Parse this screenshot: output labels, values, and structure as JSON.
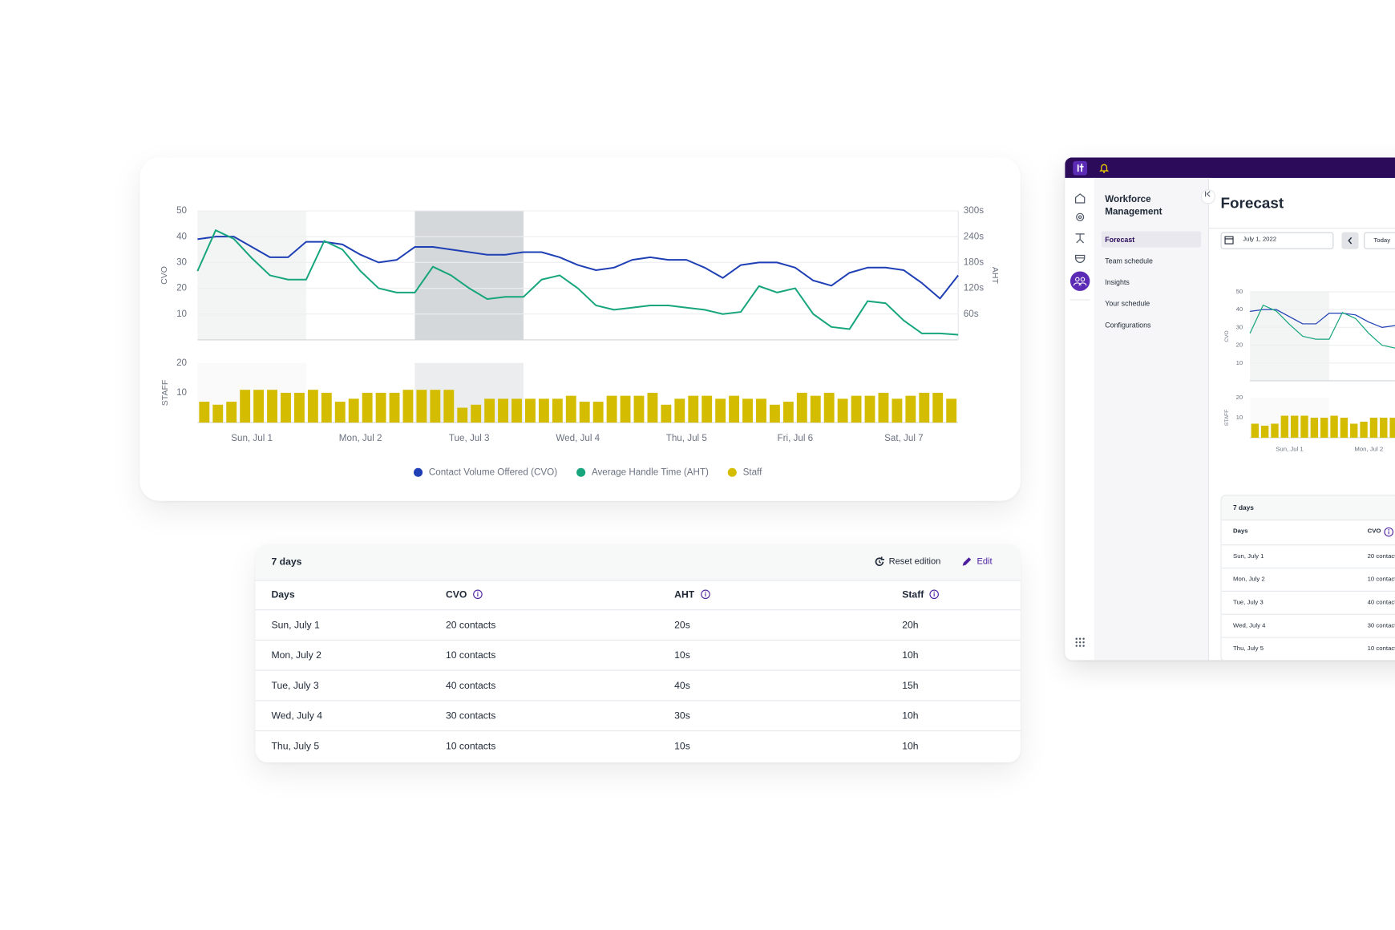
{
  "chart_data": [
    {
      "type": "line",
      "xlim": [
        0,
        168
      ],
      "xticks": [
        {
          "value": 12,
          "label": "Sun, Jul 1"
        },
        {
          "value": 36,
          "label": "Mon, Jul 2"
        },
        {
          "value": 60,
          "label": "Tue, Jul 3"
        },
        {
          "value": 84,
          "label": "Wed, Jul 4"
        },
        {
          "value": 108,
          "label": "Thu, Jul 5"
        },
        {
          "value": 132,
          "label": "Fri, Jul 6"
        },
        {
          "value": 156,
          "label": "Sat, Jul 7"
        }
      ],
      "ylabel": "CVO",
      "y2label": "AHT",
      "ylim": [
        0,
        50
      ],
      "yticks": [
        10,
        20,
        30,
        40,
        50
      ],
      "y2lim": [
        0,
        300
      ],
      "y2ticks": [
        {
          "value": 60,
          "label": "60s"
        },
        {
          "value": 120,
          "label": "120s"
        },
        {
          "value": 180,
          "label": "180s"
        },
        {
          "value": 240,
          "label": "240s"
        },
        {
          "value": 300,
          "label": "300s"
        }
      ],
      "grid": true,
      "bands": [
        {
          "x": [
            0,
            24
          ],
          "color": "#f3f5f4"
        },
        {
          "x": [
            48,
            72
          ],
          "color": "#d5d8db"
        }
      ],
      "x": [
        0,
        4,
        8,
        12,
        16,
        20,
        24,
        28,
        32,
        36,
        40,
        44,
        48,
        52,
        56,
        60,
        64,
        68,
        72,
        76,
        80,
        84,
        88,
        92,
        96,
        100,
        104,
        108,
        112,
        116,
        120,
        124,
        128,
        132,
        136,
        140,
        144,
        148,
        152,
        156,
        160,
        164,
        168
      ],
      "series": [
        {
          "name": "Contact Volume Offered (CVO)",
          "color": "#1f3fb5",
          "values": [
            39,
            40,
            40,
            36,
            32,
            32,
            38,
            38,
            37,
            33,
            30,
            31,
            36,
            36,
            35,
            34,
            33,
            33,
            34,
            34,
            32,
            29,
            27,
            28,
            31,
            32,
            31,
            31,
            28,
            24,
            29,
            30,
            30,
            28,
            23,
            21,
            26,
            28,
            28,
            27,
            22,
            16,
            25
          ]
        },
        {
          "name": "Average Handle Time (AHT)",
          "color": "#16a57c",
          "axis": "y2",
          "values": [
            160,
            255,
            235,
            190,
            150,
            140,
            140,
            230,
            210,
            160,
            120,
            110,
            110,
            170,
            150,
            120,
            95,
            100,
            100,
            140,
            150,
            120,
            80,
            70,
            75,
            80,
            80,
            75,
            70,
            60,
            65,
            125,
            110,
            120,
            60,
            30,
            25,
            90,
            85,
            45,
            15,
            15,
            12
          ]
        }
      ]
    },
    {
      "type": "bar",
      "xlim": [
        0,
        168
      ],
      "ylabel": "STAFF",
      "ylim": [
        0,
        20
      ],
      "yticks": [
        10,
        20
      ],
      "x": [
        0,
        3,
        6,
        9,
        12,
        15,
        18,
        21,
        24,
        27,
        30,
        33,
        36,
        39,
        42,
        45,
        48,
        51,
        54,
        57,
        60,
        63,
        66,
        69,
        72,
        75,
        78,
        81,
        84,
        87,
        90,
        93,
        96,
        99,
        102,
        105,
        108,
        111,
        114,
        117,
        120,
        123,
        126,
        129,
        132,
        135,
        138,
        141,
        144,
        147,
        150,
        153,
        156,
        159,
        162,
        165
      ],
      "series": [
        {
          "name": "Staff",
          "color": "#d4bd00",
          "values": [
            7,
            6,
            7,
            11,
            11,
            11,
            10,
            10,
            11,
            10,
            7,
            8,
            10,
            10,
            10,
            11,
            11,
            11,
            11,
            5,
            6,
            8,
            8,
            8,
            8,
            8,
            8,
            9,
            7,
            7,
            9,
            9,
            9,
            10,
            6,
            8,
            9,
            9,
            8,
            9,
            8,
            8,
            6,
            7,
            10,
            9,
            10,
            8,
            9,
            9,
            10,
            8,
            9,
            10,
            10,
            8
          ]
        }
      ]
    }
  ],
  "table": {
    "title": "7 days",
    "actions": [
      "Reset edition",
      "Edit"
    ],
    "columns": [
      "Days",
      "CVO",
      "AHT",
      "Staff"
    ],
    "rows": [
      [
        "Sun, July 1",
        "20 contacts",
        "20s",
        "20h"
      ],
      [
        "Mon, July 2",
        "10 contacts",
        "10s",
        "10h"
      ],
      [
        "Tue, July 3",
        "40 contacts",
        "40s",
        "15h"
      ],
      [
        "Wed, July 4",
        "30 contacts",
        "30s",
        "10h"
      ],
      [
        "Thu, July 5",
        "10 contacts",
        "10s",
        "10h"
      ]
    ]
  },
  "app": {
    "nav_title": "Workforce Management",
    "nav_items": [
      "Forecast",
      "Team schedule",
      "Insights",
      "Your schedule",
      "Configurations"
    ],
    "page_title": "Forecast",
    "date": "July 1, 2022",
    "today": "Today"
  }
}
